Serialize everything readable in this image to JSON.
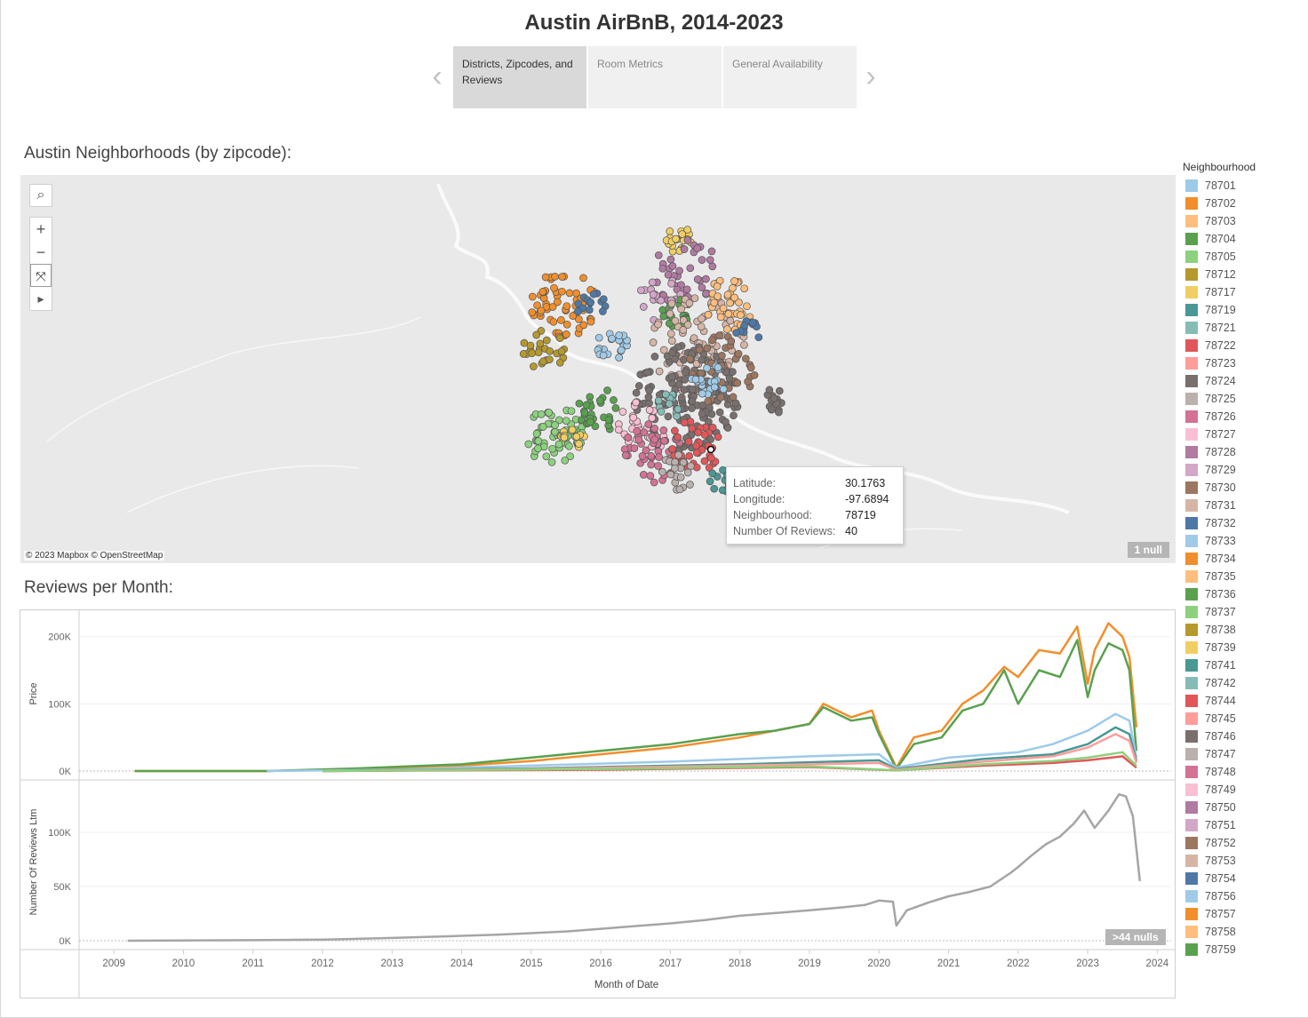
{
  "title": "Austin AirBnB, 2014-2023",
  "story": {
    "points": [
      "Districts, Zipcodes, and Reviews",
      "Room Metrics",
      "General Availability"
    ],
    "active_index": 0,
    "prev_arrow": "‹",
    "next_arrow": "›"
  },
  "map": {
    "section_title": "Austin Neighborhoods (by zipcode):",
    "tools": {
      "search": "⌕",
      "zoom_in": "+",
      "zoom_out": "−",
      "reset": "⤧",
      "more": "▸"
    },
    "attribution": "© 2023 Mapbox © OpenStreetMap",
    "null_badge": "1 null",
    "tooltip": {
      "rows": [
        {
          "key": "Latitude:",
          "value": "30.1763"
        },
        {
          "key": "Longitude:",
          "value": "-97.6894"
        },
        {
          "key": "Neighbourhood:",
          "value": "78719"
        },
        {
          "key": "Number Of Reviews:",
          "value": "40"
        }
      ]
    }
  },
  "timeline": {
    "section_title": "Reviews per Month:",
    "null_badge": ">44 nulls"
  },
  "legend": {
    "title": "Neighbourhood",
    "items": [
      {
        "label": "78701",
        "color": "#9ecae9"
      },
      {
        "label": "78702",
        "color": "#f28e2b"
      },
      {
        "label": "78703",
        "color": "#ffbe7d"
      },
      {
        "label": "78704",
        "color": "#59a14f"
      },
      {
        "label": "78705",
        "color": "#8cd17d"
      },
      {
        "label": "78712",
        "color": "#b6992d"
      },
      {
        "label": "78717",
        "color": "#f1ce63"
      },
      {
        "label": "78719",
        "color": "#499894"
      },
      {
        "label": "78721",
        "color": "#86bcb6"
      },
      {
        "label": "78722",
        "color": "#e15759"
      },
      {
        "label": "78723",
        "color": "#ff9d9a"
      },
      {
        "label": "78724",
        "color": "#79706e"
      },
      {
        "label": "78725",
        "color": "#bab0ac"
      },
      {
        "label": "78726",
        "color": "#d37295"
      },
      {
        "label": "78727",
        "color": "#fabfd2"
      },
      {
        "label": "78728",
        "color": "#b07aa1"
      },
      {
        "label": "78729",
        "color": "#d4a6c8"
      },
      {
        "label": "78730",
        "color": "#9d7660"
      },
      {
        "label": "78731",
        "color": "#d7b5a6"
      },
      {
        "label": "78732",
        "color": "#4e79a7"
      },
      {
        "label": "78733",
        "color": "#a0cbe8"
      },
      {
        "label": "78734",
        "color": "#f28e2b"
      },
      {
        "label": "78735",
        "color": "#ffbe7d"
      },
      {
        "label": "78736",
        "color": "#59a14f"
      },
      {
        "label": "78737",
        "color": "#8cd17d"
      },
      {
        "label": "78738",
        "color": "#b6992d"
      },
      {
        "label": "78739",
        "color": "#f1ce63"
      },
      {
        "label": "78741",
        "color": "#499894"
      },
      {
        "label": "78742",
        "color": "#86bcb6"
      },
      {
        "label": "78744",
        "color": "#e15759"
      },
      {
        "label": "78745",
        "color": "#ff9d9a"
      },
      {
        "label": "78746",
        "color": "#79706e"
      },
      {
        "label": "78747",
        "color": "#bab0ac"
      },
      {
        "label": "78748",
        "color": "#d37295"
      },
      {
        "label": "78749",
        "color": "#fabfd2"
      },
      {
        "label": "78750",
        "color": "#b07aa1"
      },
      {
        "label": "78751",
        "color": "#d4a6c8"
      },
      {
        "label": "78752",
        "color": "#9d7660"
      },
      {
        "label": "78753",
        "color": "#d7b5a6"
      },
      {
        "label": "78754",
        "color": "#4e79a7"
      },
      {
        "label": "78756",
        "color": "#a0cbe8"
      },
      {
        "label": "78757",
        "color": "#f28e2b"
      },
      {
        "label": "78758",
        "color": "#ffbe7d"
      },
      {
        "label": "78759",
        "color": "#59a14f"
      }
    ]
  },
  "chart_data": [
    {
      "type": "line",
      "title": "",
      "xlabel": "",
      "ylabel": "Price",
      "y_ticks": [
        0,
        100000,
        200000
      ],
      "y_tick_labels": [
        "0K",
        "100K",
        "200K"
      ],
      "ylim": [
        0,
        230000
      ],
      "series": [
        {
          "color": "#f28e2b",
          "x": [
            2009.3,
            2011.2,
            2012.5,
            2014.0,
            2015.0,
            2016.0,
            2017.0,
            2018.0,
            2018.5,
            2019.0,
            2019.2,
            2019.6,
            2019.9,
            2020.0,
            2020.25,
            2020.5,
            2020.9,
            2021.2,
            2021.5,
            2021.8,
            2022.0,
            2022.3,
            2022.6,
            2022.85,
            2023.0,
            2023.1,
            2023.3,
            2023.5,
            2023.6,
            2023.7
          ],
          "y": [
            0,
            0,
            3000,
            8000,
            15000,
            25000,
            35000,
            50000,
            60000,
            70000,
            100000,
            80000,
            90000,
            60000,
            5000,
            50000,
            60000,
            100000,
            120000,
            155000,
            140000,
            180000,
            175000,
            215000,
            130000,
            180000,
            220000,
            200000,
            170000,
            65000
          ]
        },
        {
          "color": "#59a14f",
          "x": [
            2009.3,
            2011.2,
            2012.5,
            2014.0,
            2015.0,
            2016.0,
            2017.0,
            2018.0,
            2018.5,
            2019.0,
            2019.2,
            2019.6,
            2019.9,
            2020.0,
            2020.25,
            2020.5,
            2020.9,
            2021.2,
            2021.5,
            2021.8,
            2022.0,
            2022.3,
            2022.6,
            2022.85,
            2023.0,
            2023.1,
            2023.3,
            2023.5,
            2023.6,
            2023.7
          ],
          "y": [
            0,
            0,
            4000,
            10000,
            20000,
            30000,
            40000,
            55000,
            60000,
            70000,
            95000,
            75000,
            80000,
            55000,
            3000,
            40000,
            50000,
            90000,
            100000,
            150000,
            100000,
            150000,
            140000,
            195000,
            110000,
            150000,
            190000,
            180000,
            150000,
            30000
          ]
        },
        {
          "color": "#9ecae9",
          "x": [
            2011.2,
            2013.0,
            2015.0,
            2017.0,
            2019.0,
            2020.0,
            2020.25,
            2021.0,
            2022.0,
            2022.5,
            2023.0,
            2023.4,
            2023.6,
            2023.7
          ],
          "y": [
            0,
            2000,
            8000,
            14000,
            22000,
            25000,
            5000,
            20000,
            28000,
            40000,
            60000,
            85000,
            75000,
            20000
          ]
        },
        {
          "color": "#499894",
          "x": [
            2012.0,
            2015.0,
            2018.0,
            2020.0,
            2020.25,
            2021.5,
            2022.5,
            2023.0,
            2023.4,
            2023.6,
            2023.7
          ],
          "y": [
            0,
            4000,
            10000,
            16000,
            3000,
            18000,
            25000,
            40000,
            65000,
            55000,
            15000
          ]
        },
        {
          "color": "#ff9d9a",
          "x": [
            2012.0,
            2015.0,
            2018.0,
            2020.0,
            2020.25,
            2021.5,
            2022.5,
            2023.0,
            2023.4,
            2023.6,
            2023.7
          ],
          "y": [
            0,
            3000,
            8000,
            12000,
            2000,
            14000,
            22000,
            35000,
            55000,
            45000,
            12000
          ]
        },
        {
          "color": "#e15759",
          "x": [
            2012.0,
            2016.0,
            2019.0,
            2020.25,
            2021.5,
            2022.5,
            2023.0,
            2023.5,
            2023.7
          ],
          "y": [
            0,
            2000,
            6000,
            1000,
            8000,
            12000,
            16000,
            22000,
            5000
          ]
        },
        {
          "color": "#8cd17d",
          "x": [
            2012.0,
            2016.0,
            2019.0,
            2020.25,
            2021.5,
            2022.5,
            2023.0,
            2023.5,
            2023.7
          ],
          "y": [
            0,
            3000,
            7000,
            1000,
            10000,
            15000,
            20000,
            28000,
            8000
          ]
        }
      ]
    },
    {
      "type": "line",
      "title": "",
      "xlabel": "Month of Date",
      "ylabel": "Number Of Reviews Ltm",
      "x_ticks": [
        2009,
        2010,
        2011,
        2012,
        2013,
        2014,
        2015,
        2016,
        2017,
        2018,
        2019,
        2020,
        2021,
        2022,
        2023,
        2024
      ],
      "y_ticks": [
        0,
        50000,
        100000
      ],
      "y_tick_labels": [
        "0K",
        "50K",
        "100K"
      ],
      "ylim": [
        0,
        145000
      ],
      "series": [
        {
          "color": "#a5a5a5",
          "x": [
            2009.2,
            2011.0,
            2012.0,
            2013.0,
            2014.0,
            2014.5,
            2015.0,
            2015.5,
            2016.0,
            2016.5,
            2017.0,
            2017.5,
            2018.0,
            2018.5,
            2019.0,
            2019.5,
            2019.8,
            2020.0,
            2020.2,
            2020.25,
            2020.4,
            2020.7,
            2021.0,
            2021.3,
            2021.6,
            2021.9,
            2022.0,
            2022.2,
            2022.4,
            2022.6,
            2022.8,
            2022.95,
            2023.1,
            2023.3,
            2023.45,
            2023.55,
            2023.65,
            2023.75
          ],
          "y": [
            0,
            500,
            1000,
            2500,
            4500,
            5500,
            7000,
            8500,
            11000,
            13500,
            16000,
            19000,
            23000,
            25500,
            28000,
            31000,
            33000,
            37000,
            36000,
            14000,
            28000,
            35000,
            41000,
            45000,
            50000,
            63000,
            68000,
            79000,
            89000,
            96000,
            108000,
            120000,
            104000,
            120000,
            135000,
            133000,
            115000,
            55000
          ]
        }
      ]
    }
  ]
}
